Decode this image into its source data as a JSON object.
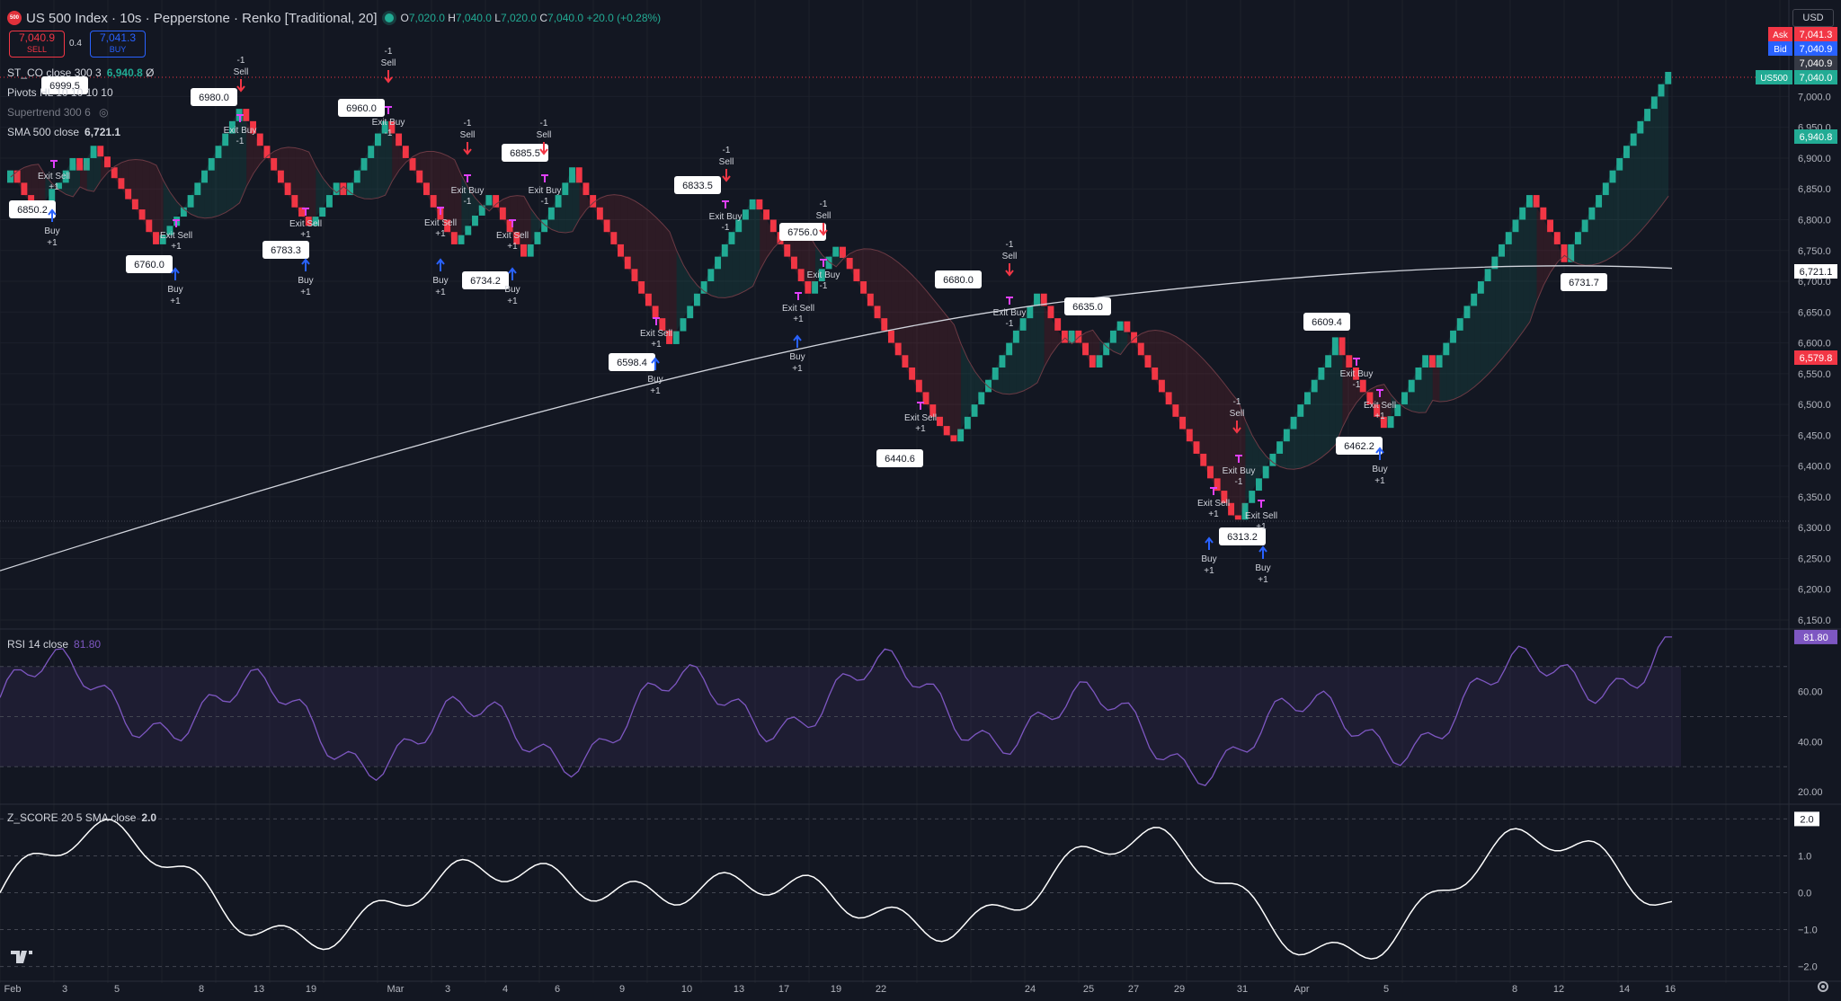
{
  "header": {
    "symbol_logo": "500",
    "title": "US 500 Index · 10s · Pepperstone · Renko [Traditional, 20]",
    "ohlc": {
      "o_label": "O",
      "o": "7,020.0",
      "h_label": "H",
      "h": "7,040.0",
      "l_label": "L",
      "l": "7,020.0",
      "c_label": "C",
      "c": "7,040.0",
      "change": "+20.0 (+0.28%)"
    },
    "sell_price": "7,040.9",
    "sell_label": "SELL",
    "buy_price": "7,041.3",
    "buy_label": "BUY",
    "spread": "0.4",
    "currency": "USD"
  },
  "legends": {
    "st_co": {
      "name": "ST_CO close 300 3",
      "value": "6,940.8",
      "suffix": "Ø"
    },
    "pivots": {
      "name": "Pivots HL 10 10 10 10"
    },
    "supertrend": {
      "name": "Supertrend 300 6"
    },
    "sma": {
      "name": "SMA 500 close",
      "value": "6,721.1"
    },
    "rsi": {
      "name": "RSI 14 close",
      "value": "81.80"
    },
    "zscore": {
      "name": "Z_SCORE 20 5 SMA close",
      "value": "2.0"
    }
  },
  "price_axis": {
    "ticks": [
      "7,000.0",
      "6,950.0",
      "6,900.0",
      "6,850.0",
      "6,800.0",
      "6,750.0",
      "6,700.0",
      "6,650.0",
      "6,600.0",
      "6,550.0",
      "6,500.0",
      "6,450.0",
      "6,400.0",
      "6,350.0",
      "6,300.0",
      "6,250.0",
      "6,200.0",
      "6,150.0"
    ],
    "badges": [
      {
        "label": "Ask",
        "value": "7,041.3",
        "color": "#f23645"
      },
      {
        "label": "Bid",
        "value": "7,040.9",
        "color": "#2962ff"
      },
      {
        "label": "",
        "value": "7,040.9",
        "color": "#363a45"
      },
      {
        "label": "US500",
        "value": "7,040.0",
        "color": "#22ab94"
      },
      {
        "label": "",
        "value": "6,940.8",
        "color": "#22ab94"
      },
      {
        "label": "",
        "value": "6,721.1",
        "color": "#ffffff"
      },
      {
        "label": "",
        "value": "6,579.8",
        "color": "#f23645"
      }
    ]
  },
  "rsi_axis": {
    "ticks": [
      "60.00",
      "40.00",
      "20.00"
    ],
    "badge": "81.80"
  },
  "z_axis": {
    "ticks": [
      "1.0",
      "0.0",
      "−1.0",
      "−2.0"
    ],
    "badge": "2.0"
  },
  "time_axis": {
    "labels": [
      "Feb",
      "3",
      "5",
      "8",
      "13",
      "19",
      "Mar",
      "3",
      "4",
      "6",
      "9",
      "10",
      "13",
      "17",
      "19",
      "22",
      "24",
      "25",
      "27",
      "29",
      "31",
      "Apr",
      "5",
      "8",
      "12",
      "14",
      "16"
    ]
  },
  "pivot_labels": [
    "6999.5",
    "6980.0",
    "6960.0",
    "6885.5",
    "6833.5",
    "6756.0",
    "6680.0",
    "6635.0",
    "6609.4",
    "6850.2",
    "6760.0",
    "6783.3",
    "6734.2",
    "6598.4",
    "6440.6",
    "6313.2",
    "6462.2",
    "6731.7"
  ],
  "signals": {
    "sell": "Sell",
    "buy": "Buy",
    "exit_sell": "Exit Sell",
    "exit_buy": "Exit Buy",
    "minus_one": "-1",
    "plus_one": "+1"
  },
  "colors": {
    "up": "#22ab94",
    "down": "#f23645",
    "rsi": "#7e57c2",
    "bg": "#131722"
  },
  "chart_data": {
    "type": "line",
    "renko_box_size": 20,
    "price_range": [
      6150,
      7040
    ],
    "close_path": [
      6860,
      6880,
      6840,
      6810,
      6850,
      6860,
      6900,
      6880,
      6920,
      6850,
      6800,
      6780,
      6760,
      6790,
      6820,
      6860,
      6900,
      6940,
      6980,
      6960,
      6920,
      6880,
      6840,
      6820,
      6790,
      6820,
      6860,
      6840,
      6880,
      6920,
      6960,
      6940,
      6900,
      6860,
      6820,
      6780,
      6760,
      6790,
      6840,
      6800,
      6760,
      6740,
      6780,
      6820,
      6860,
      6885,
      6860,
      6820,
      6780,
      6740,
      6700,
      6660,
      6620,
      6598,
      6640,
      6680,
      6720,
      6760,
      6800,
      6833,
      6800,
      6760,
      6720,
      6700,
      6680,
      6700,
      6740,
      6756,
      6720,
      6680,
      6640,
      6600,
      6560,
      6520,
      6480,
      6450,
      6440,
      6480,
      6520,
      6560,
      6600,
      6640,
      6680,
      6660,
      6620,
      6600,
      6620,
      6600,
      6580,
      6560,
      6600,
      6620,
      6635,
      6600,
      6560,
      6520,
      6480,
      6440,
      6400,
      6360,
      6320,
      6313,
      6340,
      6380,
      6420,
      6460,
      6500,
      6540,
      6580,
      6609,
      6580,
      6540,
      6500,
      6480,
      6462,
      6500,
      6540,
      6580,
      6560,
      6600,
      6640,
      6680,
      6720,
      6760,
      6800,
      6840,
      6800,
      6760,
      6731,
      6760,
      6800,
      6840,
      6880,
      6920,
      6960,
      7000,
      7040
    ],
    "sma_start": 6230,
    "sma_end": 6721.1,
    "rsi_range": [
      20,
      80
    ],
    "rsi_bands": [
      70,
      50,
      30
    ],
    "rsi_last": 81.8,
    "z_range": [
      -2.1,
      2.1
    ],
    "z_last": 2.0
  }
}
